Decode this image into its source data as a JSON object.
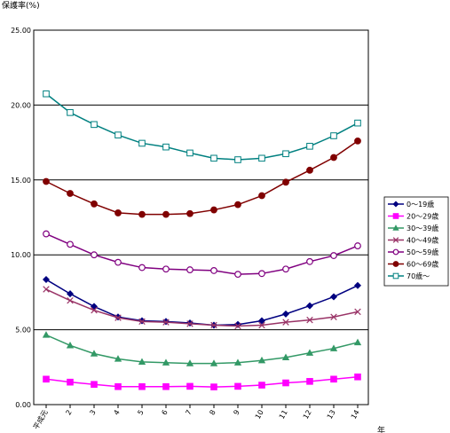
{
  "chart_data": {
    "type": "line",
    "ylabel": "保護率(%)",
    "xlabel": "年",
    "ylim": [
      0,
      25
    ],
    "yticks": [
      "0.00",
      "5.00",
      "10.00",
      "15.00",
      "20.00",
      "25.00"
    ],
    "grid": "horizontal",
    "legend_position": "right",
    "categories": [
      "平成元",
      "2",
      "3",
      "4",
      "5",
      "6",
      "7",
      "8",
      "9",
      "10",
      "11",
      "12",
      "13",
      "14"
    ],
    "series": [
      {
        "name": "0～19歳",
        "color": "#000080",
        "marker": "diamond",
        "filled": true,
        "values": [
          8.35,
          7.4,
          6.55,
          5.85,
          5.6,
          5.55,
          5.45,
          5.3,
          5.35,
          5.6,
          6.05,
          6.6,
          7.2,
          7.95
        ]
      },
      {
        "name": "20～29歳",
        "color": "#ff00ff",
        "marker": "square",
        "filled": true,
        "values": [
          1.7,
          1.5,
          1.35,
          1.2,
          1.2,
          1.2,
          1.22,
          1.18,
          1.22,
          1.3,
          1.45,
          1.55,
          1.7,
          1.85
        ]
      },
      {
        "name": "30～39歳",
        "color": "#339966",
        "marker": "triangle",
        "filled": true,
        "values": [
          4.65,
          3.95,
          3.4,
          3.05,
          2.85,
          2.8,
          2.75,
          2.75,
          2.8,
          2.95,
          3.15,
          3.45,
          3.75,
          4.15
        ]
      },
      {
        "name": "40～49歳",
        "color": "#993366",
        "marker": "x",
        "filled": false,
        "values": [
          7.7,
          6.95,
          6.3,
          5.8,
          5.55,
          5.5,
          5.4,
          5.3,
          5.25,
          5.3,
          5.5,
          5.65,
          5.85,
          6.2
        ]
      },
      {
        "name": "50～59歳",
        "color": "#800080",
        "marker": "circle",
        "filled": false,
        "values": [
          11.4,
          10.7,
          10.0,
          9.5,
          9.15,
          9.05,
          9.0,
          8.95,
          8.7,
          8.75,
          9.05,
          9.55,
          9.95,
          10.6
        ]
      },
      {
        "name": "60～69歳",
        "color": "#800000",
        "marker": "circle",
        "filled": true,
        "values": [
          14.9,
          14.1,
          13.4,
          12.8,
          12.7,
          12.7,
          12.75,
          13.0,
          13.35,
          13.95,
          14.85,
          15.65,
          16.5,
          17.6
        ]
      },
      {
        "name": "70歳～",
        "color": "#008080",
        "marker": "square",
        "filled": false,
        "values": [
          20.75,
          19.5,
          18.7,
          18.0,
          17.45,
          17.2,
          16.8,
          16.45,
          16.35,
          16.45,
          16.75,
          17.25,
          17.95,
          18.8
        ]
      }
    ]
  }
}
